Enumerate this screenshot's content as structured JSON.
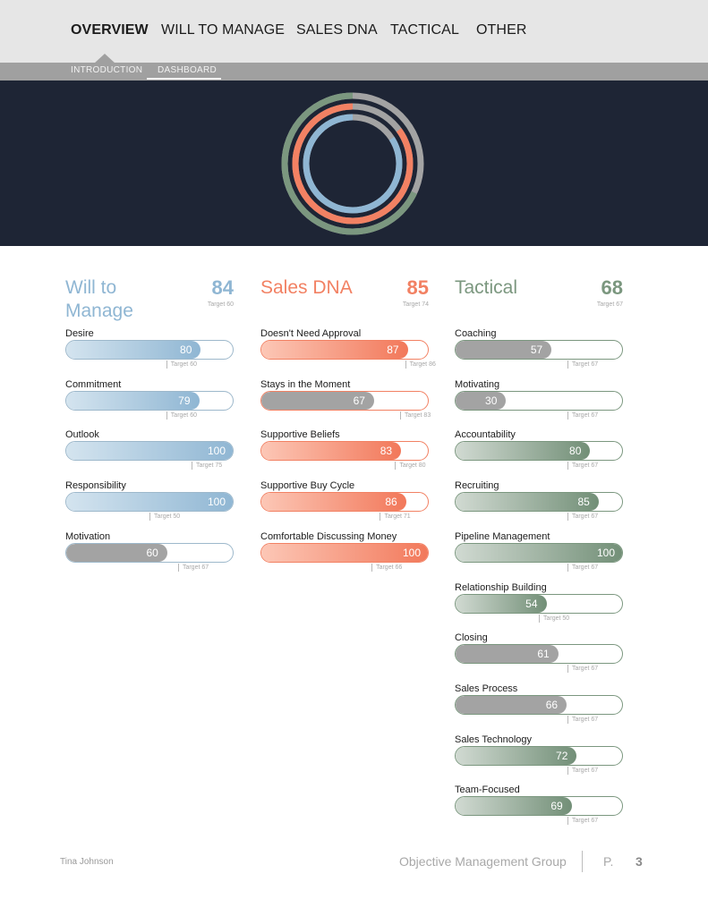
{
  "nav": {
    "tabs": [
      {
        "label": "OVERVIEW",
        "active": true
      },
      {
        "label": "WILL TO MANAGE",
        "active": false
      },
      {
        "label": "SALES DNA",
        "active": false
      },
      {
        "label": "TACTICAL",
        "active": false
      },
      {
        "label": "OTHER",
        "active": false
      }
    ],
    "subtabs": [
      {
        "label": "INTRODUCTION",
        "active": false
      },
      {
        "label": "DASHBOARD",
        "active": true
      }
    ]
  },
  "colors": {
    "will": "#8fb6d3",
    "dna": "#f28163",
    "tactical": "#7b977f",
    "gray": "#a3a3a3",
    "hero_bg": "#1e2535"
  },
  "rings": [
    {
      "name": "tactical",
      "value": 68
    },
    {
      "name": "sales-dna",
      "value": 85
    },
    {
      "name": "will-to-manage",
      "value": 84
    }
  ],
  "columns": [
    {
      "key": "will",
      "title": "Will to Manage",
      "score": "84",
      "target": "Target 60",
      "items": [
        {
          "label": "Desire",
          "value": 80,
          "target_value": 60,
          "target": "Target 60",
          "style": "will"
        },
        {
          "label": "Commitment",
          "value": 79,
          "target_value": 60,
          "target": "Target 60",
          "style": "will"
        },
        {
          "label": "Outlook",
          "value": 100,
          "target_value": 75,
          "target": "Target 75",
          "style": "will"
        },
        {
          "label": "Responsibility",
          "value": 100,
          "target_value": 50,
          "target": "Target 50",
          "style": "will"
        },
        {
          "label": "Motivation",
          "value": 60,
          "target_value": 67,
          "target": "Target 67",
          "style": "gray"
        }
      ]
    },
    {
      "key": "dna",
      "title": "Sales DNA",
      "score": "85",
      "target": "Target 74",
      "items": [
        {
          "label": "Doesn't Need Approval",
          "value": 87,
          "target_value": 86,
          "target": "Target 86",
          "style": "dna"
        },
        {
          "label": "Stays in the Moment",
          "value": 67,
          "target_value": 83,
          "target": "Target 83",
          "style": "gray"
        },
        {
          "label": "Supportive Beliefs",
          "value": 83,
          "target_value": 80,
          "target": "Target 80",
          "style": "dna"
        },
        {
          "label": "Supportive Buy Cycle",
          "value": 86,
          "target_value": 71,
          "target": "Target 71",
          "style": "dna"
        },
        {
          "label": "Comfortable Discussing Money",
          "value": 100,
          "target_value": 66,
          "target": "Target 66",
          "style": "dna"
        }
      ]
    },
    {
      "key": "tactical",
      "title": "Tactical",
      "score": "68",
      "target": "Target 67",
      "items": [
        {
          "label": "Coaching",
          "value": 57,
          "target_value": 67,
          "target": "Target 67",
          "style": "gray"
        },
        {
          "label": "Motivating",
          "value": 30,
          "target_value": 67,
          "target": "Target 67",
          "style": "gray"
        },
        {
          "label": "Accountability",
          "value": 80,
          "target_value": 67,
          "target": "Target 67",
          "style": "tactical"
        },
        {
          "label": "Recruiting",
          "value": 85,
          "target_value": 67,
          "target": "Target 67",
          "style": "tactical"
        },
        {
          "label": "Pipeline Management",
          "value": 100,
          "target_value": 67,
          "target": "Target 67",
          "style": "tactical"
        },
        {
          "label": "Relationship Building",
          "value": 54,
          "target_value": 50,
          "target": "Target 50",
          "style": "tactical"
        },
        {
          "label": "Closing",
          "value": 61,
          "target_value": 67,
          "target": "Target 67",
          "style": "gray"
        },
        {
          "label": "Sales Process",
          "value": 66,
          "target_value": 67,
          "target": "Target 67",
          "style": "gray"
        },
        {
          "label": "Sales Technology",
          "value": 72,
          "target_value": 67,
          "target": "Target 67",
          "style": "tactical"
        },
        {
          "label": "Team-Focused",
          "value": 69,
          "target_value": 67,
          "target": "Target 67",
          "style": "tactical"
        }
      ]
    }
  ],
  "footer": {
    "name": "Tina Johnson",
    "org": "Objective Management Group",
    "page_prefix": "P.",
    "page_number": "3"
  }
}
